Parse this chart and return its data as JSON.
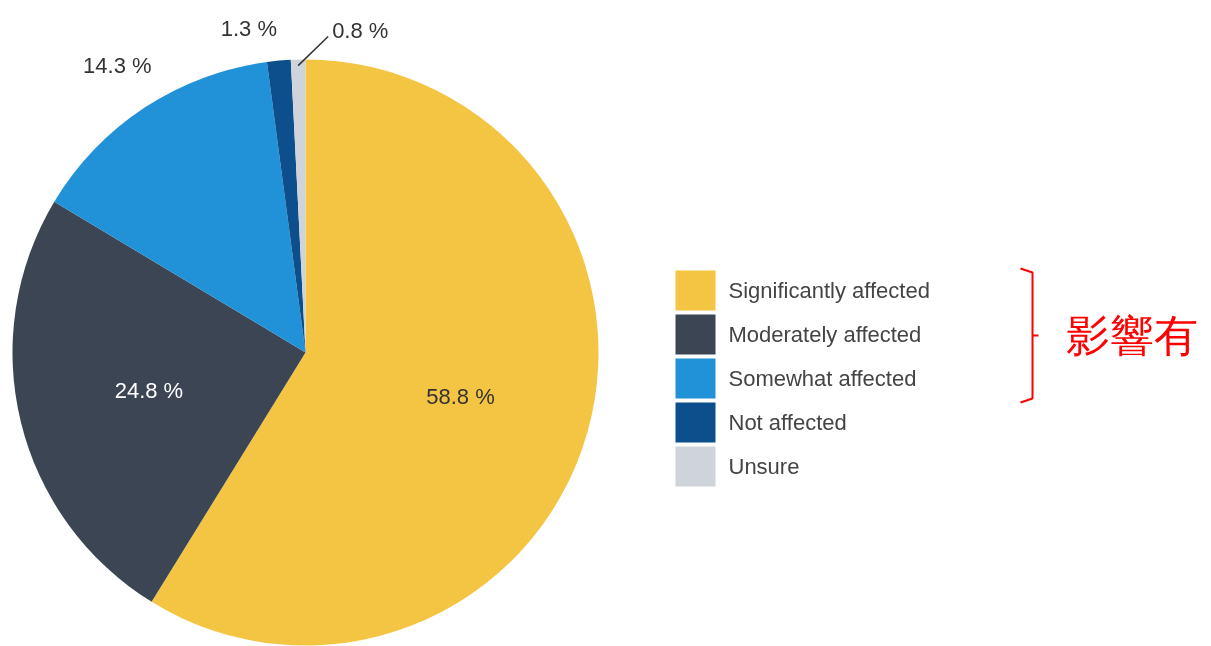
{
  "chart_data": {
    "type": "pie",
    "categories": [
      "Significantly affected",
      "Moderately affected",
      "Somewhat affected",
      "Not affected",
      "Unsure"
    ],
    "values": [
      58.8,
      24.8,
      14.3,
      1.3,
      0.8
    ],
    "colors": [
      "#f4c443",
      "#3c4553",
      "#2192d8",
      "#0c4f8c",
      "#cfd4db"
    ],
    "value_labels": [
      "58.8 %",
      "24.8 %",
      "14.3 %",
      "1.3 %",
      "0.8 %"
    ],
    "legend": "right",
    "annotations": [
      "影響有"
    ]
  }
}
